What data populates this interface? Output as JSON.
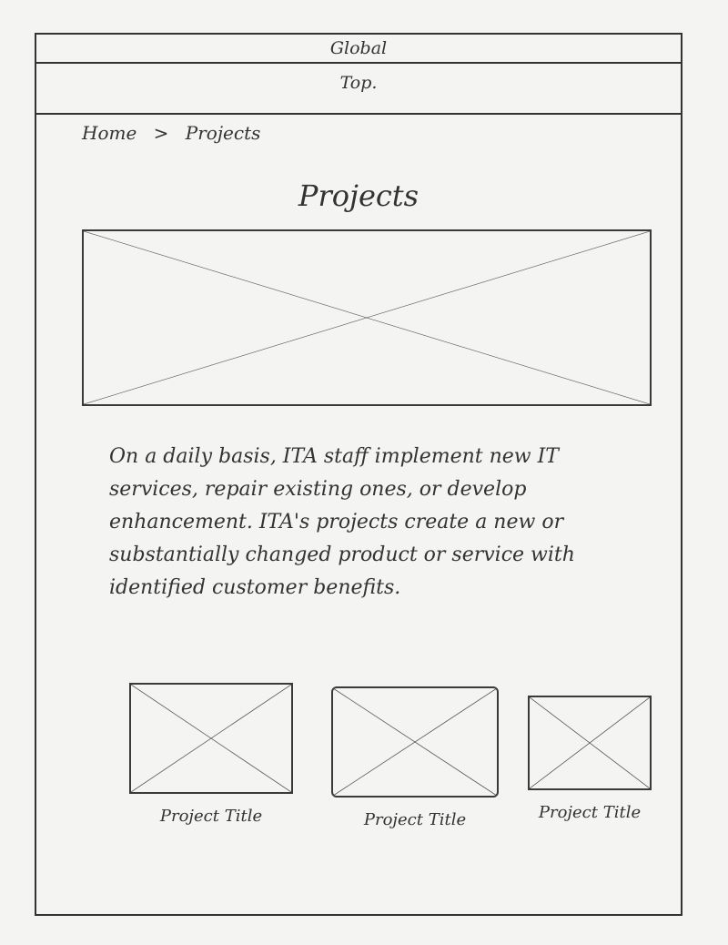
{
  "header": {
    "global_label": "Global",
    "top_label": "Top."
  },
  "breadcrumb": {
    "home": "Home",
    "separator": ">",
    "current": "Projects"
  },
  "page": {
    "title": "Projects",
    "intro": "On a daily basis, ITA staff implement new IT services, repair existing ones, or develop enhancement. ITA's projects create a new or substantially changed product or service with identified customer benefits."
  },
  "projects": [
    {
      "title": "Project Title"
    },
    {
      "title": "Project Title"
    },
    {
      "title": "Project Title"
    }
  ]
}
